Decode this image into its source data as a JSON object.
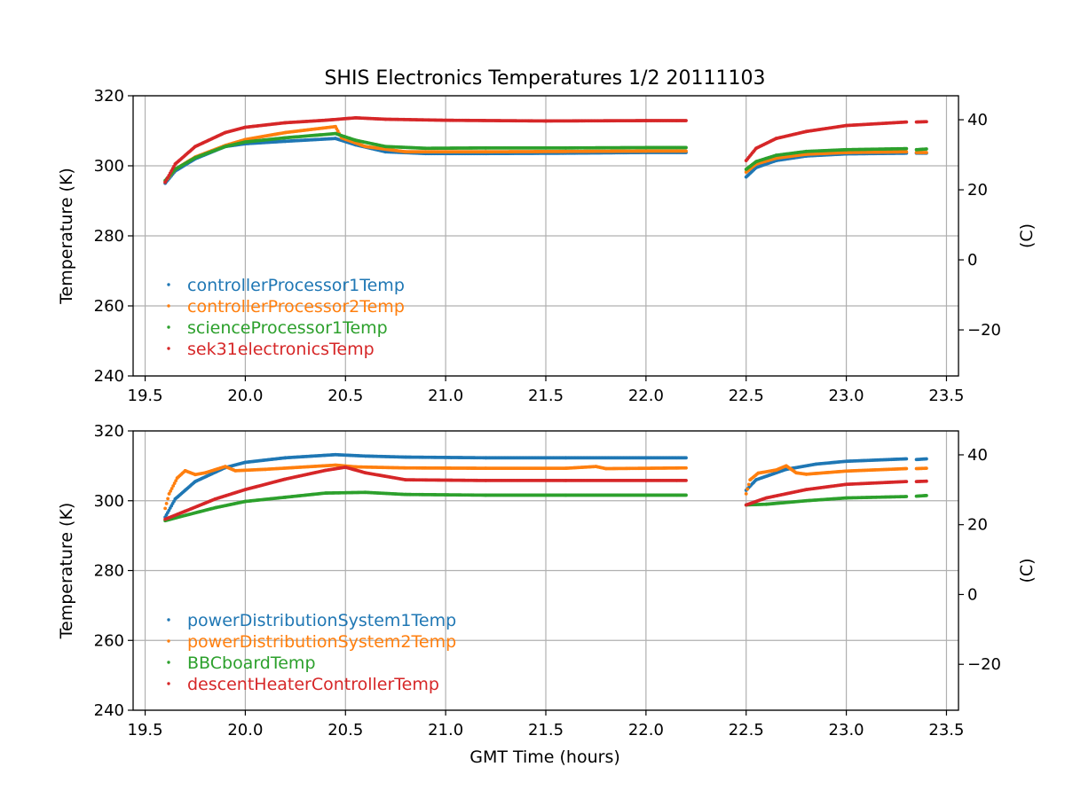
{
  "chart_data": {
    "title": "SHIS Electronics Temperatures 1/2 20111103",
    "xlabel": "GMT Time (hours)",
    "type": "scatter",
    "grid": true,
    "legend_position": "lower-left",
    "x_ticks": [
      "19.5",
      "20.0",
      "20.5",
      "21.0",
      "21.5",
      "22.0",
      "22.5",
      "23.0",
      "23.5"
    ],
    "panels": [
      {
        "type": "scatter",
        "ylabel": "Temperature (K)",
        "y2label": "(C)",
        "xlim": [
          19.44,
          23.56
        ],
        "ylim": [
          240,
          320
        ],
        "y_ticks": [
          "240",
          "260",
          "280",
          "300",
          "320"
        ],
        "y2_ticks": [
          "−20",
          "0",
          "20",
          "40"
        ],
        "series": [
          {
            "name": "controllerProcessor1Temp",
            "color": "#1f77b4",
            "segments": [
              [
                [
                  19.6,
                  295
                ],
                [
                  19.65,
                  298.5
                ],
                [
                  19.75,
                  302
                ],
                [
                  19.9,
                  305.5
                ],
                [
                  20.0,
                  306.3
                ],
                [
                  20.2,
                  307
                ],
                [
                  20.45,
                  307.8
                ],
                [
                  20.55,
                  306
                ],
                [
                  20.7,
                  304
                ],
                [
                  20.9,
                  303.5
                ],
                [
                  21.2,
                  303.5
                ],
                [
                  21.6,
                  303.6
                ],
                [
                  22.0,
                  303.8
                ],
                [
                  22.2,
                  303.8
                ]
              ],
              [
                [
                  22.5,
                  296.8
                ],
                [
                  22.55,
                  299.5
                ],
                [
                  22.65,
                  301.5
                ],
                [
                  22.8,
                  302.8
                ],
                [
                  23.0,
                  303.4
                ],
                [
                  23.3,
                  303.6
                ]
              ],
              [
                [
                  23.35,
                  303.6
                ],
                [
                  23.4,
                  303.6
                ]
              ]
            ]
          },
          {
            "name": "controllerProcessor2Temp",
            "color": "#ff7f0e",
            "segments": [
              [
                [
                  19.6,
                  295.5
                ],
                [
                  19.65,
                  299
                ],
                [
                  19.75,
                  302.5
                ],
                [
                  19.9,
                  305.8
                ],
                [
                  20.0,
                  307.5
                ],
                [
                  20.2,
                  309.5
                ],
                [
                  20.45,
                  311.2
                ],
                [
                  20.48,
                  308
                ],
                [
                  20.6,
                  305.5
                ],
                [
                  20.8,
                  304
                ],
                [
                  21.2,
                  304
                ],
                [
                  21.6,
                  304.1
                ],
                [
                  22.0,
                  304.2
                ],
                [
                  22.2,
                  304.2
                ]
              ],
              [
                [
                  22.5,
                  298.2
                ],
                [
                  22.55,
                  300.5
                ],
                [
                  22.65,
                  302.2
                ],
                [
                  22.8,
                  303.3
                ],
                [
                  23.0,
                  303.8
                ],
                [
                  23.3,
                  304
                ]
              ],
              [
                [
                  23.35,
                  303.8
                ],
                [
                  23.4,
                  303.8
                ]
              ]
            ]
          },
          {
            "name": "scienceProcessor1Temp",
            "color": "#2ca02c",
            "segments": [
              [
                [
                  19.6,
                  295.8
                ],
                [
                  19.65,
                  299
                ],
                [
                  19.75,
                  302.3
                ],
                [
                  19.9,
                  305.5
                ],
                [
                  20.0,
                  306.8
                ],
                [
                  20.2,
                  308
                ],
                [
                  20.45,
                  309.2
                ],
                [
                  20.55,
                  307.3
                ],
                [
                  20.7,
                  305.5
                ],
                [
                  20.9,
                  305
                ],
                [
                  21.2,
                  305.1
                ],
                [
                  21.6,
                  305.1
                ],
                [
                  22.0,
                  305.2
                ],
                [
                  22.2,
                  305.2
                ]
              ],
              [
                [
                  22.5,
                  299
                ],
                [
                  22.55,
                  301.2
                ],
                [
                  22.65,
                  303
                ],
                [
                  22.8,
                  304.1
                ],
                [
                  23.0,
                  304.6
                ],
                [
                  23.3,
                  304.9
                ]
              ],
              [
                [
                  23.35,
                  304.6
                ],
                [
                  23.4,
                  304.8
                ]
              ]
            ]
          },
          {
            "name": "sek31electronicsTemp",
            "color": "#d62728",
            "segments": [
              [
                [
                  19.6,
                  295.3
                ],
                [
                  19.65,
                  300.5
                ],
                [
                  19.75,
                  305.5
                ],
                [
                  19.9,
                  309.5
                ],
                [
                  20.0,
                  311
                ],
                [
                  20.2,
                  312.3
                ],
                [
                  20.4,
                  313
                ],
                [
                  20.55,
                  313.7
                ],
                [
                  20.7,
                  313.3
                ],
                [
                  21.0,
                  313
                ],
                [
                  21.5,
                  312.8
                ],
                [
                  22.0,
                  312.9
                ],
                [
                  22.2,
                  312.9
                ]
              ],
              [
                [
                  22.5,
                  301.5
                ],
                [
                  22.55,
                  305
                ],
                [
                  22.65,
                  307.8
                ],
                [
                  22.8,
                  309.8
                ],
                [
                  23.0,
                  311.5
                ],
                [
                  23.3,
                  312.5
                ]
              ],
              [
                [
                  23.35,
                  312.5
                ],
                [
                  23.4,
                  312.6
                ]
              ]
            ]
          }
        ]
      },
      {
        "type": "scatter",
        "ylabel": "Temperature (K)",
        "y2label": "(C)",
        "xlim": [
          19.44,
          23.56
        ],
        "ylim": [
          240,
          320
        ],
        "y_ticks": [
          "240",
          "260",
          "280",
          "300",
          "320"
        ],
        "y2_ticks": [
          "−20",
          "0",
          "20",
          "40"
        ],
        "series": [
          {
            "name": "powerDistributionSystem1Temp",
            "color": "#1f77b4",
            "segments": [
              [
                [
                  19.6,
                  295.3
                ],
                [
                  19.65,
                  300.5
                ],
                [
                  19.75,
                  305.5
                ],
                [
                  19.9,
                  309.5
                ],
                [
                  20.0,
                  311
                ],
                [
                  20.2,
                  312.3
                ],
                [
                  20.45,
                  313.2
                ],
                [
                  20.6,
                  312.8
                ],
                [
                  20.8,
                  312.5
                ],
                [
                  21.2,
                  312.3
                ],
                [
                  21.6,
                  312.3
                ],
                [
                  22.0,
                  312.3
                ],
                [
                  22.2,
                  312.3
                ]
              ],
              [
                [
                  22.5,
                  303
                ],
                [
                  22.55,
                  306
                ],
                [
                  22.7,
                  309
                ],
                [
                  22.85,
                  310.5
                ],
                [
                  23.0,
                  311.3
                ],
                [
                  23.3,
                  312
                ]
              ],
              [
                [
                  23.35,
                  311.8
                ],
                [
                  23.4,
                  312
                ]
              ]
            ]
          },
          {
            "name": "powerDistributionSystem2Temp",
            "color": "#ff7f0e",
            "segments": [
              [
                [
                  19.6,
                  297.8
                ],
                [
                  19.62,
                  302
                ],
                [
                  19.66,
                  306.5
                ],
                [
                  19.7,
                  308.6
                ],
                [
                  19.75,
                  307.5
                ],
                [
                  19.8,
                  308
                ],
                [
                  19.9,
                  309.8
                ],
                [
                  19.95,
                  308.6
                ],
                [
                  20.1,
                  309
                ],
                [
                  20.45,
                  310.2
                ],
                [
                  20.55,
                  309.7
                ],
                [
                  20.8,
                  309.4
                ],
                [
                  21.2,
                  309.3
                ],
                [
                  21.6,
                  309.3
                ],
                [
                  21.75,
                  309.8
                ],
                [
                  21.8,
                  309.2
                ],
                [
                  22.2,
                  309.4
                ]
              ],
              [
                [
                  22.5,
                  302
                ],
                [
                  22.52,
                  306
                ],
                [
                  22.56,
                  307.9
                ],
                [
                  22.65,
                  308.8
                ],
                [
                  22.7,
                  310
                ],
                [
                  22.75,
                  308
                ],
                [
                  22.8,
                  307.6
                ],
                [
                  23.0,
                  308.5
                ],
                [
                  23.3,
                  309.2
                ]
              ],
              [
                [
                  23.35,
                  309.2
                ],
                [
                  23.4,
                  309.3
                ]
              ]
            ]
          },
          {
            "name": "BBCboardTemp",
            "color": "#2ca02c",
            "segments": [
              [
                [
                  19.6,
                  294.3
                ],
                [
                  19.7,
                  295.8
                ],
                [
                  19.85,
                  298
                ],
                [
                  20.0,
                  299.8
                ],
                [
                  20.2,
                  301
                ],
                [
                  20.4,
                  302.2
                ],
                [
                  20.6,
                  302.4
                ],
                [
                  20.8,
                  301.8
                ],
                [
                  21.2,
                  301.6
                ],
                [
                  21.6,
                  301.6
                ],
                [
                  22.0,
                  301.6
                ],
                [
                  22.2,
                  301.6
                ]
              ],
              [
                [
                  22.5,
                  298.8
                ],
                [
                  22.6,
                  299
                ],
                [
                  22.8,
                  300
                ],
                [
                  23.0,
                  300.8
                ],
                [
                  23.3,
                  301.2
                ]
              ],
              [
                [
                  23.35,
                  301.3
                ],
                [
                  23.4,
                  301.5
                ]
              ]
            ]
          },
          {
            "name": "descentHeaterControllerTemp",
            "color": "#d62728",
            "segments": [
              [
                [
                  19.6,
                  294.7
                ],
                [
                  19.7,
                  297
                ],
                [
                  19.85,
                  300.5
                ],
                [
                  20.0,
                  303.2
                ],
                [
                  20.2,
                  306.2
                ],
                [
                  20.4,
                  308.7
                ],
                [
                  20.5,
                  309.6
                ],
                [
                  20.6,
                  308
                ],
                [
                  20.8,
                  306
                ],
                [
                  21.2,
                  305.8
                ],
                [
                  21.6,
                  305.8
                ],
                [
                  22.0,
                  305.8
                ],
                [
                  22.2,
                  305.8
                ]
              ],
              [
                [
                  22.5,
                  298.8
                ],
                [
                  22.6,
                  300.8
                ],
                [
                  22.8,
                  303.2
                ],
                [
                  23.0,
                  304.7
                ],
                [
                  23.3,
                  305.5
                ]
              ],
              [
                [
                  23.35,
                  305.5
                ],
                [
                  23.4,
                  305.6
                ]
              ]
            ]
          }
        ]
      }
    ]
  }
}
